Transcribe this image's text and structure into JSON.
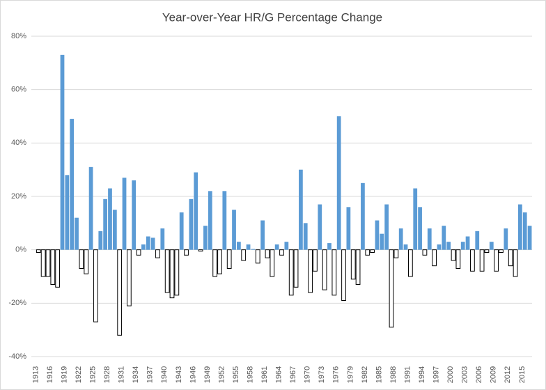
{
  "chart_data": {
    "type": "bar",
    "title": "Year-over-Year HR/G Percentage Change",
    "categories": [
      "1913",
      null,
      null,
      "1916",
      null,
      null,
      "1919",
      null,
      null,
      "1922",
      null,
      null,
      "1925",
      null,
      null,
      "1928",
      null,
      null,
      "1931",
      null,
      null,
      "1934",
      null,
      null,
      "1937",
      null,
      null,
      "1940",
      null,
      null,
      "1943",
      null,
      null,
      "1946",
      null,
      null,
      "1949",
      null,
      null,
      "1952",
      null,
      null,
      "1955",
      null,
      null,
      "1958",
      null,
      null,
      "1961",
      null,
      null,
      "1964",
      null,
      null,
      "1967",
      null,
      null,
      "1970",
      null,
      null,
      "1973",
      null,
      null,
      "1976",
      null,
      null,
      "1979",
      null,
      null,
      "1982",
      null,
      null,
      "1985",
      null,
      null,
      "1988",
      null,
      null,
      "1991",
      null,
      null,
      "1994",
      null,
      null,
      "1997",
      null,
      null,
      "2000",
      null,
      null,
      "2003",
      null,
      null,
      "2006",
      null,
      null,
      "2009",
      null,
      null,
      "2012",
      null,
      null,
      "2015",
      null,
      null
    ],
    "values": [
      null,
      -1,
      -10,
      -10,
      -13,
      -14,
      73,
      28,
      49,
      12,
      -7,
      -9,
      31,
      -27,
      7,
      19,
      23,
      15,
      -32,
      27,
      -21,
      26,
      -2,
      2,
      5,
      4.5,
      -3,
      8,
      -16,
      -18,
      -17,
      14,
      -2,
      19,
      29,
      -0.5,
      9,
      22,
      -10,
      -9,
      22,
      -7,
      15,
      3,
      -4,
      2,
      0.3,
      -5,
      11,
      -3,
      -10,
      2,
      -2,
      3,
      -17,
      -14,
      30,
      10,
      -16,
      -8,
      17,
      -15,
      2.5,
      -17,
      50,
      -19,
      16,
      -11,
      -13,
      25,
      -2,
      -1,
      11,
      6,
      17,
      -29,
      -3,
      8,
      2,
      -10,
      23,
      16,
      -2,
      8,
      -6,
      2,
      9,
      3,
      -4,
      -7,
      3,
      5,
      -8,
      7,
      -8,
      -1,
      3,
      -8,
      -1,
      8,
      -6,
      -10,
      17,
      14,
      9
    ],
    "color": "#5b9bd5",
    "invert_if_negative": true,
    "negative_fill": "#ffffff",
    "negative_stroke": "#000000",
    "ylim": [
      -40,
      80
    ],
    "yticks": [
      {
        "value": -40,
        "label": "-40%"
      },
      {
        "value": -20,
        "label": "-20%"
      },
      {
        "value": 0,
        "label": "0%"
      },
      {
        "value": 20,
        "label": "20%"
      },
      {
        "value": 40,
        "label": "40%"
      },
      {
        "value": 60,
        "label": "60%"
      },
      {
        "value": 80,
        "label": "80%"
      }
    ],
    "grid": true
  }
}
